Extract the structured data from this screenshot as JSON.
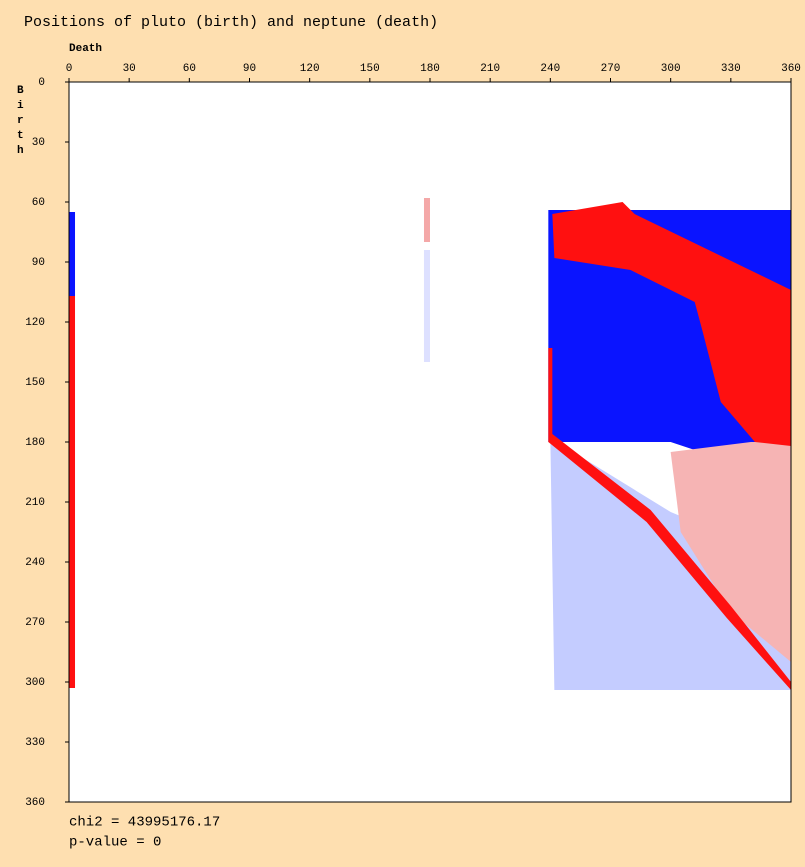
{
  "chart_data": {
    "type": "region",
    "title": "Positions of pluto (birth) and neptune (death)",
    "x_label": "Death",
    "y_label": "Birth",
    "xlim": [
      0,
      360
    ],
    "ylim": [
      0,
      360
    ],
    "xticks": [
      0,
      30,
      60,
      90,
      120,
      150,
      180,
      210,
      240,
      270,
      300,
      330,
      360
    ],
    "yticks": [
      0,
      30,
      60,
      90,
      120,
      150,
      180,
      210,
      240,
      270,
      300,
      330,
      360
    ],
    "regions": [
      {
        "color": "#0a14ff",
        "points": [
          [
            0,
            65
          ],
          [
            3,
            65
          ],
          [
            3,
            107
          ],
          [
            0,
            107
          ]
        ]
      },
      {
        "color": "#ff1010",
        "points": [
          [
            0,
            107
          ],
          [
            3,
            107
          ],
          [
            3,
            303
          ],
          [
            0,
            303
          ]
        ]
      },
      {
        "color": "#c4ccff",
        "points": [
          [
            240,
            178
          ],
          [
            300,
            215
          ],
          [
            360,
            240
          ],
          [
            360,
            304
          ],
          [
            242,
            304
          ]
        ]
      },
      {
        "color": "#0a14ff",
        "points": [
          [
            239,
            64
          ],
          [
            360,
            64
          ],
          [
            360,
            200
          ],
          [
            330,
            190
          ],
          [
            300,
            180
          ],
          [
            239,
            180
          ]
        ]
      },
      {
        "color": "#f6b4b4",
        "points": [
          [
            300,
            185
          ],
          [
            340,
            180
          ],
          [
            360,
            180
          ],
          [
            360,
            290
          ],
          [
            330,
            265
          ],
          [
            305,
            225
          ]
        ]
      },
      {
        "color": "#ff1010",
        "points": [
          [
            241,
            66
          ],
          [
            276,
            60
          ],
          [
            282,
            66
          ],
          [
            360,
            104
          ],
          [
            360,
            182
          ],
          [
            342,
            180
          ],
          [
            325,
            160
          ],
          [
            316,
            125
          ],
          [
            312,
            110
          ],
          [
            300,
            104
          ],
          [
            280,
            94
          ],
          [
            242,
            88
          ]
        ]
      },
      {
        "color": "#ff1010",
        "points": [
          [
            239,
            133
          ],
          [
            241,
            133
          ],
          [
            241,
            176
          ],
          [
            290,
            214
          ],
          [
            330,
            262
          ],
          [
            360,
            300
          ],
          [
            360,
            304
          ],
          [
            328,
            268
          ],
          [
            288,
            220
          ],
          [
            239,
            180
          ]
        ]
      },
      {
        "color": "#f4a8a8",
        "points": [
          [
            177,
            58
          ],
          [
            180,
            58
          ],
          [
            180,
            80
          ],
          [
            177,
            80
          ]
        ]
      },
      {
        "color": "#dde0ff",
        "points": [
          [
            177,
            84
          ],
          [
            180,
            84
          ],
          [
            180,
            140
          ],
          [
            177,
            140
          ]
        ]
      }
    ]
  },
  "annotations": [
    "chi2 = 43995176.17",
    "p-value = 0"
  ]
}
